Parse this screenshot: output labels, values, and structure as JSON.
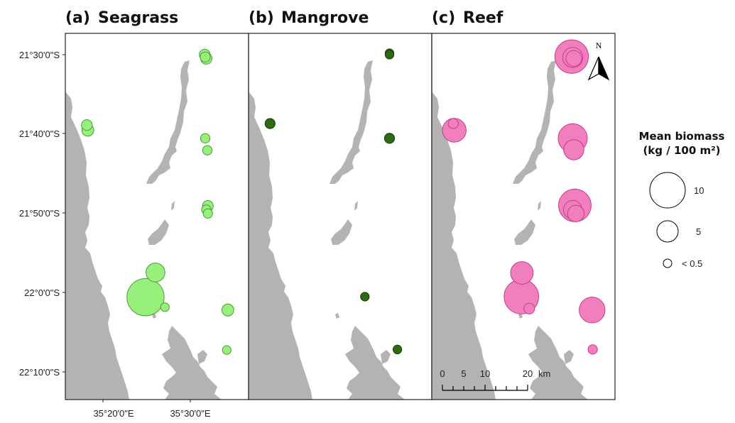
{
  "panels": [
    {
      "label": "(a)",
      "title": "Seagrass",
      "fill": "#98f07c",
      "stroke": "#4b9a3a"
    },
    {
      "label": "(b)",
      "title": "Mangrove",
      "fill": "#2d6a12",
      "stroke": "#163a08"
    },
    {
      "label": "(c)",
      "title": "Reef",
      "fill": "#f27fbd",
      "stroke": "#c63c88"
    }
  ],
  "y_axis": [
    "21°30'0\"S",
    "21°40'0\"S",
    "21°50'0\"S",
    "22°0'0\"S",
    "22°10'0\"S"
  ],
  "x_axis": [
    "35°20'0\"E",
    "35°30'0\"E"
  ],
  "legend": {
    "title_line1": "Mean biomass",
    "title_line2": "(kg / 100 m²)",
    "items": [
      {
        "label": "10",
        "value": 10
      },
      {
        "label": "5",
        "value": 5
      },
      {
        "label": "< 0.5",
        "value": 0.5
      }
    ]
  },
  "north_label": "N",
  "scale_bar": {
    "ticks": [
      "0",
      "5",
      "10",
      "20"
    ],
    "unit": "km"
  },
  "sites": {
    "seagrass": [
      {
        "lon": 35.491,
        "lat": -21.5,
        "biomass": 0.8
      },
      {
        "lon": 35.494,
        "lat": -21.508,
        "biomass": 0.9
      },
      {
        "lon": 35.492,
        "lat": -21.505,
        "biomass": 0.7
      },
      {
        "lon": 35.266,
        "lat": -21.648,
        "biomass": 0.8
      },
      {
        "lon": 35.268,
        "lat": -21.659,
        "biomass": 1.0
      },
      {
        "lon": 35.492,
        "lat": -21.676,
        "biomass": 0.6
      },
      {
        "lon": 35.496,
        "lat": -21.701,
        "biomass": 0.6
      },
      {
        "lon": 35.497,
        "lat": -21.818,
        "biomass": 0.8
      },
      {
        "lon": 35.494,
        "lat": -21.826,
        "biomass": 0.6
      },
      {
        "lon": 35.497,
        "lat": -21.834,
        "biomass": 0.6
      },
      {
        "lon": 35.397,
        "lat": -21.958,
        "biomass": 2.6
      },
      {
        "lon": 35.378,
        "lat": -22.01,
        "biomass": 10.5
      },
      {
        "lon": 35.415,
        "lat": -22.031,
        "biomass": 0.5
      },
      {
        "lon": 35.535,
        "lat": -22.037,
        "biomass": 1.0
      },
      {
        "lon": 35.533,
        "lat": -22.121,
        "biomass": 0.5
      }
    ],
    "mangrove": [
      {
        "lon": 35.494,
        "lat": -21.497,
        "biomass": 0.5
      },
      {
        "lon": 35.494,
        "lat": -21.5,
        "biomass": 0.5
      },
      {
        "lon": 35.266,
        "lat": -21.645,
        "biomass": 0.7
      },
      {
        "lon": 35.494,
        "lat": -21.676,
        "biomass": 0.7
      },
      {
        "lon": 35.447,
        "lat": -22.009,
        "biomass": 0.5
      },
      {
        "lon": 35.509,
        "lat": -22.12,
        "biomass": 0.5
      }
    ],
    "reef": [
      {
        "lon": 35.492,
        "lat": -21.504,
        "biomass": 8.5
      },
      {
        "lon": 35.494,
        "lat": -21.506,
        "biomass": 3.0
      },
      {
        "lon": 35.496,
        "lat": -21.508,
        "biomass": 1.8
      },
      {
        "lon": 35.266,
        "lat": -21.645,
        "biomass": 0.7
      },
      {
        "lon": 35.268,
        "lat": -21.659,
        "biomass": 4.2
      },
      {
        "lon": 35.494,
        "lat": -21.676,
        "biomass": 6.4
      },
      {
        "lon": 35.496,
        "lat": -21.7,
        "biomass": 3.0
      },
      {
        "lon": 35.498,
        "lat": -21.817,
        "biomass": 8.0
      },
      {
        "lon": 35.494,
        "lat": -21.826,
        "biomass": 2.5
      },
      {
        "lon": 35.5,
        "lat": -21.834,
        "biomass": 2.0
      },
      {
        "lon": 35.397,
        "lat": -21.959,
        "biomass": 3.8
      },
      {
        "lon": 35.396,
        "lat": -22.009,
        "biomass": 9.0
      },
      {
        "lon": 35.411,
        "lat": -22.034,
        "biomass": 0.8
      },
      {
        "lon": 35.531,
        "lat": -22.037,
        "biomass": 5.0
      },
      {
        "lon": 35.532,
        "lat": -22.12,
        "biomass": 0.6
      }
    ]
  }
}
